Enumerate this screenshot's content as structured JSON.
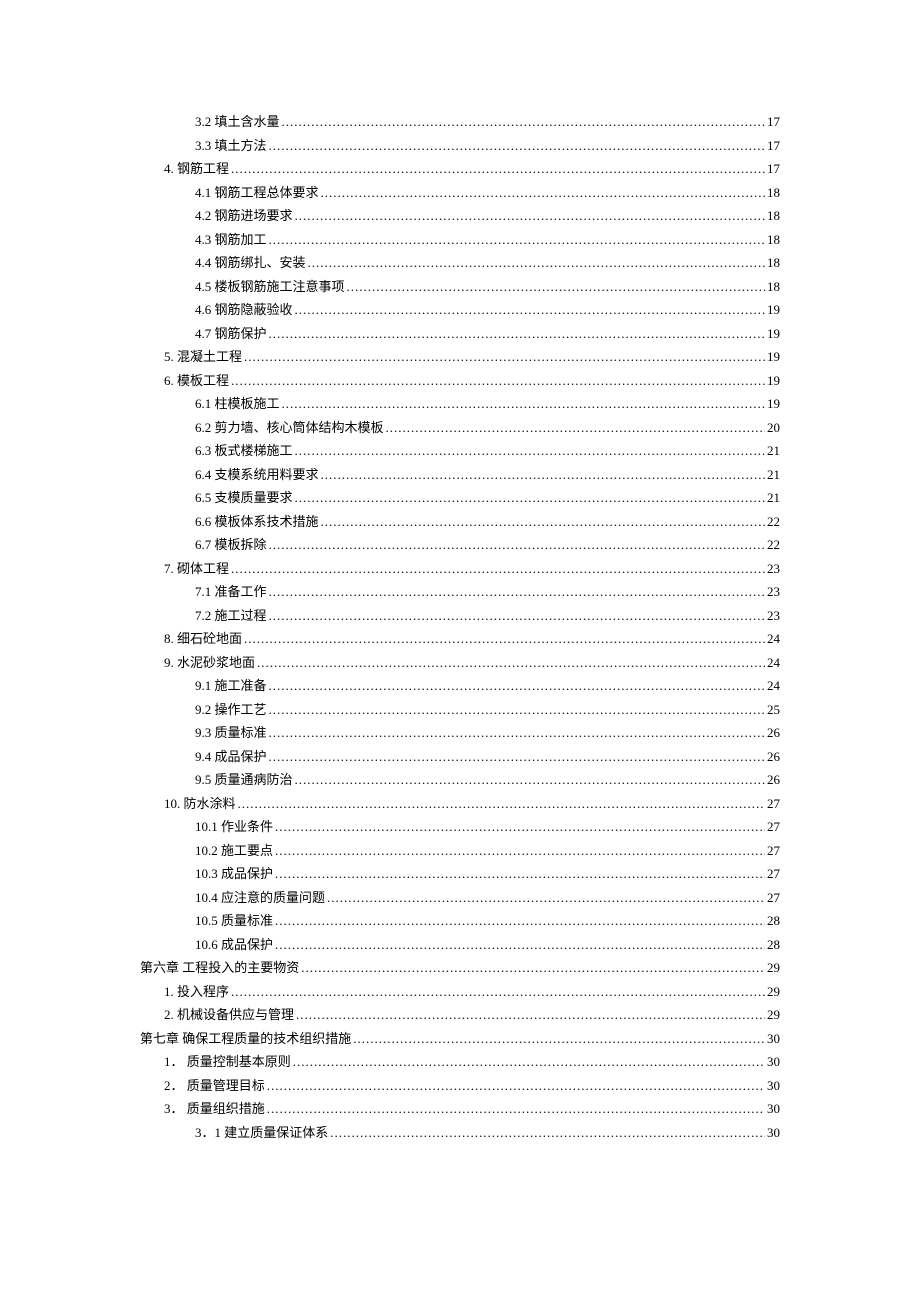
{
  "entries": [
    {
      "indent": 2,
      "label": "3.2 填土含水量",
      "page": "17"
    },
    {
      "indent": 2,
      "label": "3.3 填土方法",
      "page": "17"
    },
    {
      "indent": 1,
      "label": "4. 钢筋工程",
      "page": "17"
    },
    {
      "indent": 2,
      "label": "4.1 钢筋工程总体要求",
      "page": "18"
    },
    {
      "indent": 2,
      "label": "4.2 钢筋进场要求",
      "page": "18"
    },
    {
      "indent": 2,
      "label": "4.3 钢筋加工",
      "page": "18"
    },
    {
      "indent": 2,
      "label": "4.4 钢筋绑扎、安装",
      "page": "18"
    },
    {
      "indent": 2,
      "label": "4.5 楼板钢筋施工注意事项",
      "page": "18"
    },
    {
      "indent": 2,
      "label": "4.6 钢筋隐蔽验收",
      "page": "19"
    },
    {
      "indent": 2,
      "label": "4.7 钢筋保护",
      "page": "19"
    },
    {
      "indent": 1,
      "label": "5. 混凝土工程",
      "page": "19"
    },
    {
      "indent": 1,
      "label": "6. 模板工程",
      "page": "19"
    },
    {
      "indent": 2,
      "label": "6.1 柱模板施工",
      "page": "19"
    },
    {
      "indent": 2,
      "label": "6.2 剪力墙、核心筒体结构木模板",
      "page": "20"
    },
    {
      "indent": 2,
      "label": "6.3 板式楼梯施工",
      "page": "21"
    },
    {
      "indent": 2,
      "label": "6.4 支模系统用料要求",
      "page": "21"
    },
    {
      "indent": 2,
      "label": "6.5 支模质量要求",
      "page": "21"
    },
    {
      "indent": 2,
      "label": "6.6 模板体系技术措施",
      "page": "22"
    },
    {
      "indent": 2,
      "label": "6.7 模板拆除",
      "page": "22"
    },
    {
      "indent": 1,
      "label": "7. 砌体工程",
      "page": "23"
    },
    {
      "indent": 2,
      "label": "7.1 准备工作",
      "page": "23"
    },
    {
      "indent": 2,
      "label": "7.2 施工过程",
      "page": "23"
    },
    {
      "indent": 1,
      "label": "8. 细石砼地面",
      "page": "24"
    },
    {
      "indent": 1,
      "label": "9. 水泥砂浆地面",
      "page": "24"
    },
    {
      "indent": 2,
      "label": "9.1 施工准备",
      "page": "24"
    },
    {
      "indent": 2,
      "label": "9.2 操作工艺",
      "page": "25"
    },
    {
      "indent": 2,
      "label": "9.3 质量标准",
      "page": "26"
    },
    {
      "indent": 2,
      "label": "9.4 成品保护",
      "page": "26"
    },
    {
      "indent": 2,
      "label": "9.5 质量通病防治",
      "page": "26"
    },
    {
      "indent": 1,
      "label": "10. 防水涂料",
      "page": "27"
    },
    {
      "indent": 2,
      "label": "10.1 作业条件",
      "page": "27"
    },
    {
      "indent": 2,
      "label": "10.2 施工要点",
      "page": "27"
    },
    {
      "indent": 2,
      "label": "10.3 成品保护",
      "page": "27"
    },
    {
      "indent": 2,
      "label": "10.4 应注意的质量问题",
      "page": "27"
    },
    {
      "indent": 2,
      "label": "10.5 质量标准",
      "page": "28"
    },
    {
      "indent": 2,
      "label": "10.6 成品保护",
      "page": "28"
    },
    {
      "indent": 0,
      "label": "第六章 工程投入的主要物资",
      "page": "29"
    },
    {
      "indent": 1,
      "label": "1. 投入程序",
      "page": "29"
    },
    {
      "indent": 1,
      "label": "2. 机械设备供应与管理",
      "page": "29"
    },
    {
      "indent": 0,
      "label": "第七章 确保工程质量的技术组织措施",
      "page": "30"
    },
    {
      "indent": 1,
      "label": "1． 质量控制基本原则",
      "page": "30"
    },
    {
      "indent": 1,
      "label": "2． 质量管理目标",
      "page": "30"
    },
    {
      "indent": 1,
      "label": "3． 质量组织措施",
      "page": "30"
    },
    {
      "indent": 2,
      "label": "3．1 建立质量保证体系",
      "page": "30"
    }
  ]
}
